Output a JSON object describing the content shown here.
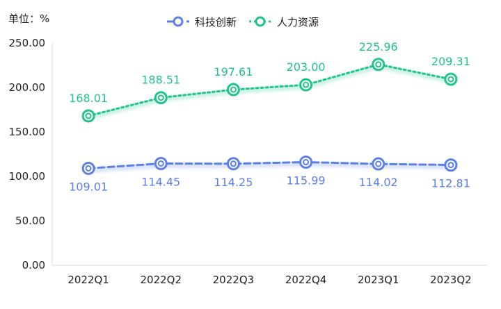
{
  "chart_data": {
    "type": "line",
    "unit_label": "单位：%",
    "categories": [
      "2022Q1",
      "2022Q2",
      "2022Q3",
      "2022Q4",
      "2023Q1",
      "2023Q2"
    ],
    "y_ticks": [
      "0.00",
      "50.00",
      "100.00",
      "150.00",
      "200.00",
      "250.00"
    ],
    "ylim": [
      0,
      250
    ],
    "grid": false,
    "legend_position": "top-center",
    "series": [
      {
        "name": "科技创新",
        "values": [
          109.01,
          114.45,
          114.25,
          115.99,
          114.02,
          112.81
        ],
        "labels": [
          "109.01",
          "114.45",
          "114.25",
          "115.99",
          "114.02",
          "112.81"
        ],
        "color": "#5B7FE8",
        "line_style": "dashed"
      },
      {
        "name": "人力资源",
        "values": [
          168.01,
          188.51,
          197.61,
          203.0,
          225.96,
          209.31
        ],
        "labels": [
          "168.01",
          "188.51",
          "197.61",
          "203.00",
          "225.96",
          "209.31"
        ],
        "color": "#1FC488",
        "line_style": "dotted"
      }
    ]
  }
}
